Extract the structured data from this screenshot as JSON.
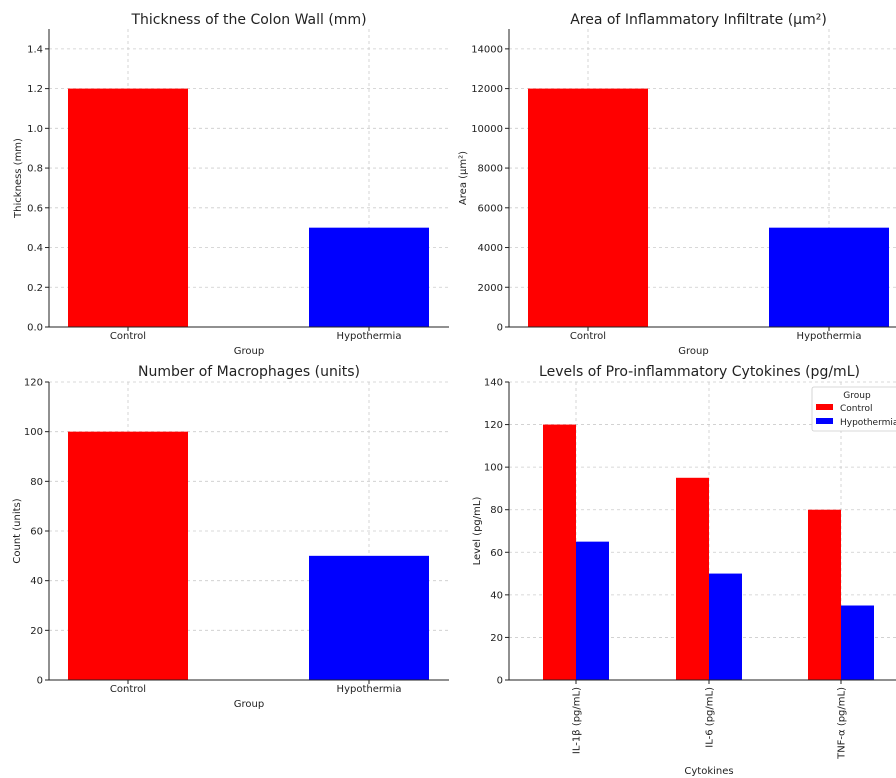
{
  "colors": {
    "control": "#ff0000",
    "hypothermia": "#0000ff"
  },
  "chart_data": [
    {
      "type": "bar",
      "title": "Thickness of the Colon Wall (mm)",
      "xlabel": "Group",
      "ylabel": "Thickness (mm)",
      "categories": [
        "Control",
        "Hypothermia"
      ],
      "values": [
        1.2,
        0.5
      ],
      "ylim": [
        0,
        1.5
      ],
      "yticks": [
        "0.0",
        "0.2",
        "0.4",
        "0.6",
        "0.8",
        "1.0",
        "1.2",
        "1.4"
      ],
      "grid": true
    },
    {
      "type": "bar",
      "title": "Area of Inflammatory Infiltrate (μm²)",
      "xlabel": "Group",
      "ylabel": "Area (μm²)",
      "categories": [
        "Control",
        "Hypothermia"
      ],
      "values": [
        12000,
        5000
      ],
      "ylim": [
        0,
        15000
      ],
      "yticks": [
        "0",
        "2000",
        "4000",
        "6000",
        "8000",
        "10000",
        "12000",
        "14000"
      ],
      "grid": true
    },
    {
      "type": "bar",
      "title": "Number of Macrophages (units)",
      "xlabel": "Group",
      "ylabel": "Count (units)",
      "categories": [
        "Control",
        "Hypothermia"
      ],
      "values": [
        100,
        50
      ],
      "ylim": [
        0,
        120
      ],
      "yticks": [
        "0",
        "20",
        "40",
        "60",
        "80",
        "100",
        "120"
      ],
      "grid": true
    },
    {
      "type": "bar",
      "title": "Levels of Pro-inflammatory Cytokines (pg/mL)",
      "xlabel": "Cytokines",
      "ylabel": "Level (pg/mL)",
      "categories": [
        "IL-1β (pg/mL)",
        "IL-6 (pg/mL)",
        "TNF-α (pg/mL)"
      ],
      "series": [
        {
          "name": "Control",
          "values": [
            120,
            95,
            80
          ]
        },
        {
          "name": "Hypothermia",
          "values": [
            65,
            50,
            35
          ]
        }
      ],
      "ylim": [
        0,
        140
      ],
      "yticks": [
        "0",
        "20",
        "40",
        "60",
        "80",
        "100",
        "120",
        "140"
      ],
      "legend_title": "Group",
      "legend": "top-right",
      "grid": true
    }
  ]
}
